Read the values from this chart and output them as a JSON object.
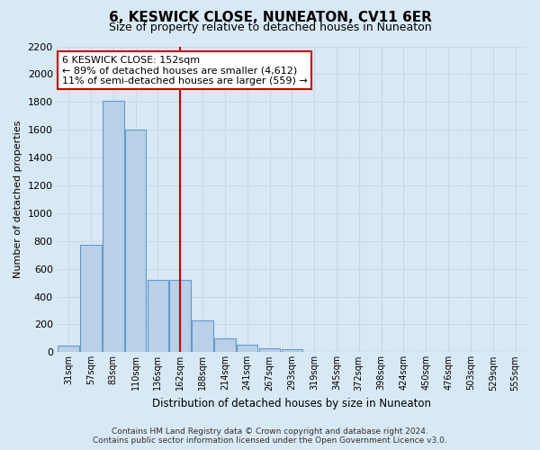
{
  "title": "6, KESWICK CLOSE, NUNEATON, CV11 6ER",
  "subtitle": "Size of property relative to detached houses in Nuneaton",
  "xlabel": "Distribution of detached houses by size in Nuneaton",
  "ylabel": "Number of detached properties",
  "bin_labels": [
    "31sqm",
    "57sqm",
    "83sqm",
    "110sqm",
    "136sqm",
    "162sqm",
    "188sqm",
    "214sqm",
    "241sqm",
    "267sqm",
    "293sqm",
    "319sqm",
    "345sqm",
    "372sqm",
    "398sqm",
    "424sqm",
    "450sqm",
    "476sqm",
    "503sqm",
    "529sqm",
    "555sqm"
  ],
  "bar_heights": [
    50,
    775,
    1810,
    1600,
    520,
    520,
    230,
    100,
    55,
    30,
    20,
    0,
    0,
    0,
    0,
    0,
    0,
    0,
    0,
    0,
    0
  ],
  "bar_color": "#b8d0e8",
  "bar_edge_color": "#6699cc",
  "vline_color": "#cc0000",
  "annotation_title": "6 KESWICK CLOSE: 152sqm",
  "annotation_line1": "← 89% of detached houses are smaller (4,612)",
  "annotation_line2": "11% of semi-detached houses are larger (559) →",
  "annotation_box_color": "white",
  "annotation_box_edge": "#cc0000",
  "ylim": [
    0,
    2200
  ],
  "yticks": [
    0,
    200,
    400,
    600,
    800,
    1000,
    1200,
    1400,
    1600,
    1800,
    2000,
    2200
  ],
  "grid_color": "#c8d8e8",
  "background_color": "#d8e8f4",
  "footer_line1": "Contains HM Land Registry data © Crown copyright and database right 2024.",
  "footer_line2": "Contains public sector information licensed under the Open Government Licence v3.0."
}
